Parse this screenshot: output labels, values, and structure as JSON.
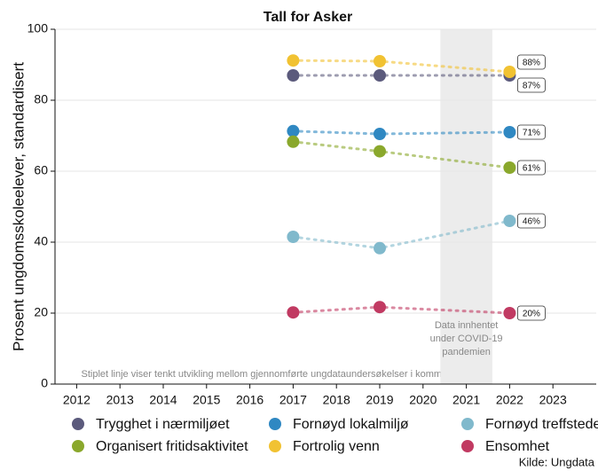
{
  "chart_data": {
    "type": "line",
    "title": "Tall for Asker",
    "y_label": "Prosent ungdomsskoleelever, standardisert",
    "x": [
      2017,
      2019,
      2022
    ],
    "series": [
      {
        "name": "Trygghet i nærmiljøet",
        "color": "#5b5a7c",
        "values": [
          87,
          87,
          87
        ],
        "value_labels": [
          null,
          null,
          "87%"
        ]
      },
      {
        "name": "Fornøyd lokalmiljø",
        "color": "#2f88c2",
        "values": [
          71.3,
          70.5,
          71
        ],
        "value_labels": [
          null,
          null,
          "71%"
        ]
      },
      {
        "name": "Fornøyd treffsteder",
        "color": "#80b9cc",
        "values": [
          41.5,
          38.3,
          46
        ],
        "value_labels": [
          null,
          null,
          "46%"
        ]
      },
      {
        "name": "Organisert fritidsaktivitet",
        "color": "#8aa82c",
        "values": [
          68.3,
          65.6,
          61
        ],
        "value_labels": [
          null,
          null,
          "61%"
        ]
      },
      {
        "name": "Fortrolig venn",
        "color": "#f1c232",
        "values": [
          91.2,
          91,
          88
        ],
        "value_labels": [
          null,
          null,
          "88%"
        ]
      },
      {
        "name": "Ensomhet",
        "color": "#c13a62",
        "values": [
          20.2,
          21.7,
          20
        ],
        "value_labels": [
          null,
          null,
          "20%"
        ]
      }
    ],
    "xlim": [
      2011.5,
      2024
    ],
    "xticks": [
      2012,
      2013,
      2014,
      2015,
      2016,
      2017,
      2018,
      2019,
      2020,
      2021,
      2022,
      2023
    ],
    "ylim": [
      0,
      100
    ],
    "yticks": [
      0,
      20,
      40,
      60,
      80,
      100
    ],
    "grid": true,
    "shaded_range": [
      2020.4,
      2021.6
    ],
    "shaded_note": [
      "Data innhentet",
      "under COVID-19",
      "pandemien"
    ],
    "footnote": "Stiplet linje viser tenkt utvikling mellom gjennomførte ungdataundersøkelser i kommunen",
    "source": "Kilde: Ungdata"
  }
}
